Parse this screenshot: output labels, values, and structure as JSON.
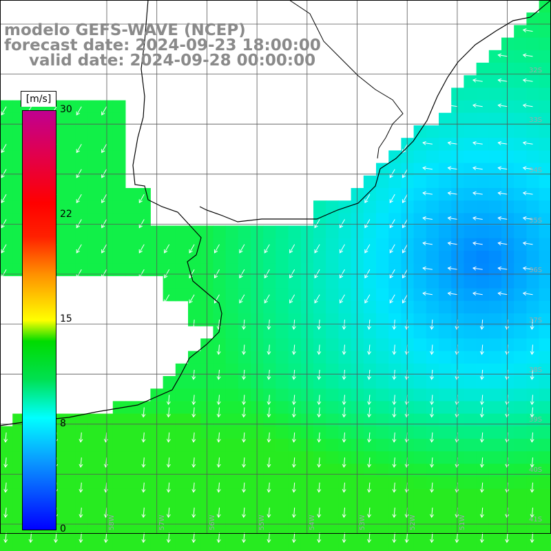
{
  "title": {
    "line1": "modelo GEFS-WAVE (NCEP)",
    "line2": "forecast date: 2024-09-23 18:00:00",
    "line3": "valid date: 2024-09-28 00:00:00"
  },
  "colorbar": {
    "unit": "[m/s]",
    "ticks": [
      "30",
      "22",
      "15",
      "8",
      "0"
    ],
    "colors": [
      "#0000ff",
      "#00ffff",
      "#00dc00",
      "#ffff00",
      "#ff0000",
      "#c00090"
    ]
  },
  "lat_labels": [
    "32S",
    "33S",
    "34S",
    "35S",
    "36S",
    "37S",
    "38S",
    "39S",
    "40S",
    "41S"
  ],
  "lon_labels": [
    "58W",
    "57W",
    "56W",
    "55W",
    "54W",
    "53W",
    "52W",
    "51W"
  ],
  "map": {
    "type": "wind speed and direction field",
    "land_color": "#ffffff",
    "grid_color": "#555555",
    "arrow_color": "#ffffff",
    "coastline_color": "#000000"
  }
}
